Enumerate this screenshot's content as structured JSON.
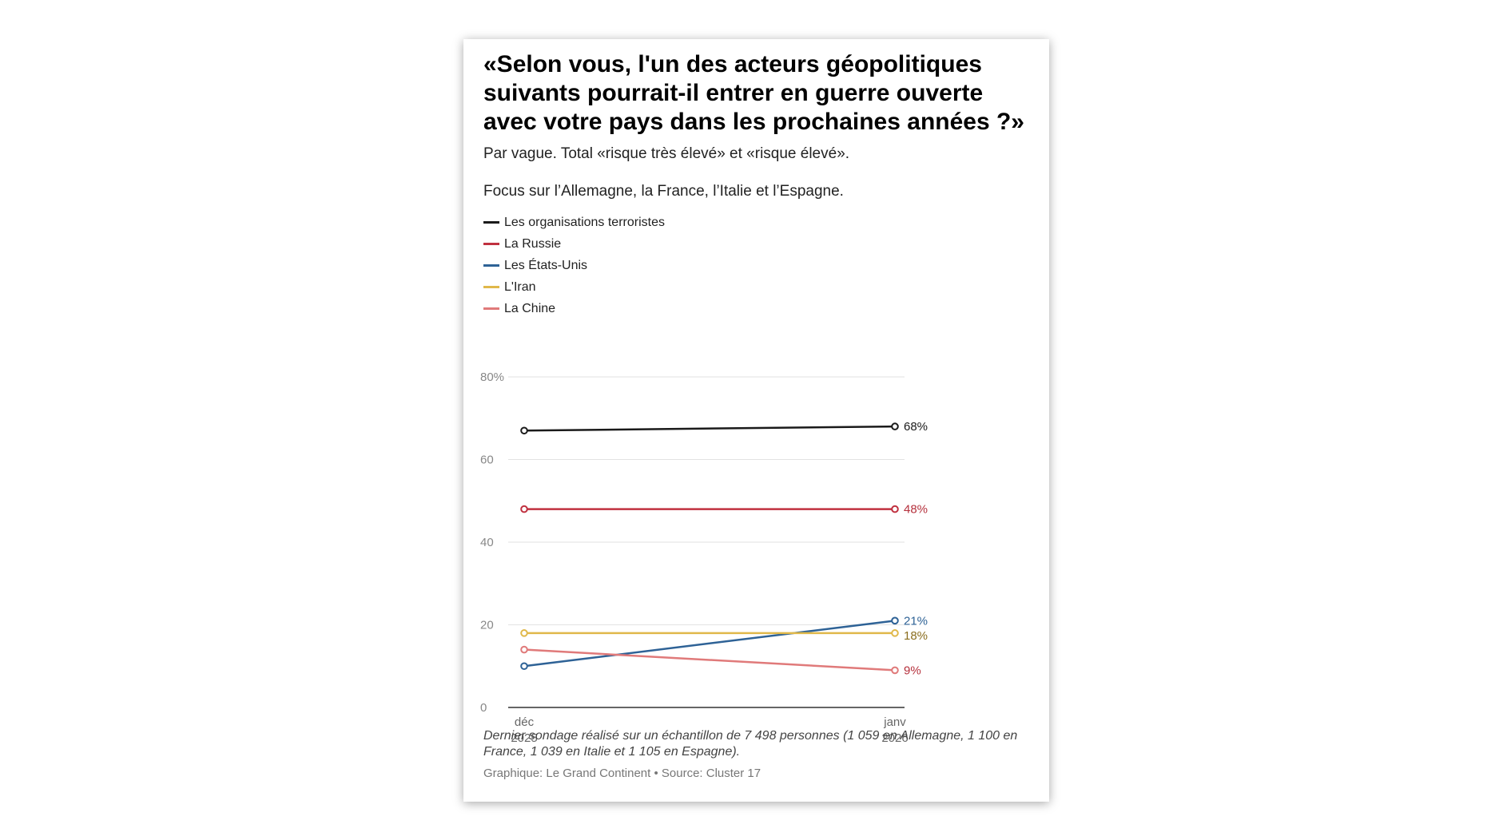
{
  "header": {
    "title": "«Selon vous, l'un des acteurs géopolitiques suivants pourrait-il entrer en guerre ouverte avec votre pays dans les prochaines années ?»",
    "subtitle": "Par vague. Total «risque très élevé» et «risque élevé».",
    "focus": "Focus sur l’Allemagne, la France, l’Italie et l’Espagne."
  },
  "legend": [
    {
      "label": "Les organisations terroristes",
      "color": "#1a1a1a"
    },
    {
      "label": "La Russie",
      "color": "#c0303f"
    },
    {
      "label": "Les États-Unis",
      "color": "#2e6296"
    },
    {
      "label": "L'Iran",
      "color": "#e0b84a"
    },
    {
      "label": "La Chine",
      "color": "#e07a7a"
    }
  ],
  "chart_data": {
    "type": "line",
    "x": [
      "déc 2025",
      "janv 2026"
    ],
    "x_tick_labels": [
      [
        "déc",
        "2025"
      ],
      [
        "janv",
        "2026"
      ]
    ],
    "ylim": [
      0,
      80
    ],
    "y_ticks": [
      0,
      20,
      40,
      60,
      80
    ],
    "y_tick_labels": [
      "0",
      "20",
      "40",
      "60",
      "80%"
    ],
    "grid": true,
    "series": [
      {
        "name": "Les organisations terroristes",
        "color": "#1a1a1a",
        "label_color": "#1a1a1a",
        "values": [
          67,
          68
        ],
        "end_label": "68%"
      },
      {
        "name": "La Russie",
        "color": "#c0303f",
        "label_color": "#b5303c",
        "values": [
          48,
          48
        ],
        "end_label": "48%"
      },
      {
        "name": "Les États-Unis",
        "color": "#2e6296",
        "label_color": "#2e6296",
        "values": [
          10,
          21
        ],
        "end_label": "21%"
      },
      {
        "name": "L'Iran",
        "color": "#e0b84a",
        "label_color": "#8a6d1e",
        "values": [
          18,
          18
        ],
        "end_label": "18%"
      },
      {
        "name": "La Chine",
        "color": "#e07a7a",
        "label_color": "#b5303c",
        "values": [
          14,
          9
        ],
        "end_label": "9%"
      }
    ]
  },
  "footer": {
    "note": "Dernier sondage réalisé sur un échantillon de 7 498 personnes (1 059 en Allemagne, 1 100 en France, 1 039 en Italie et 1 105 en Espagne).",
    "credits": "Graphique: Le Grand Continent • Source: Cluster 17"
  }
}
